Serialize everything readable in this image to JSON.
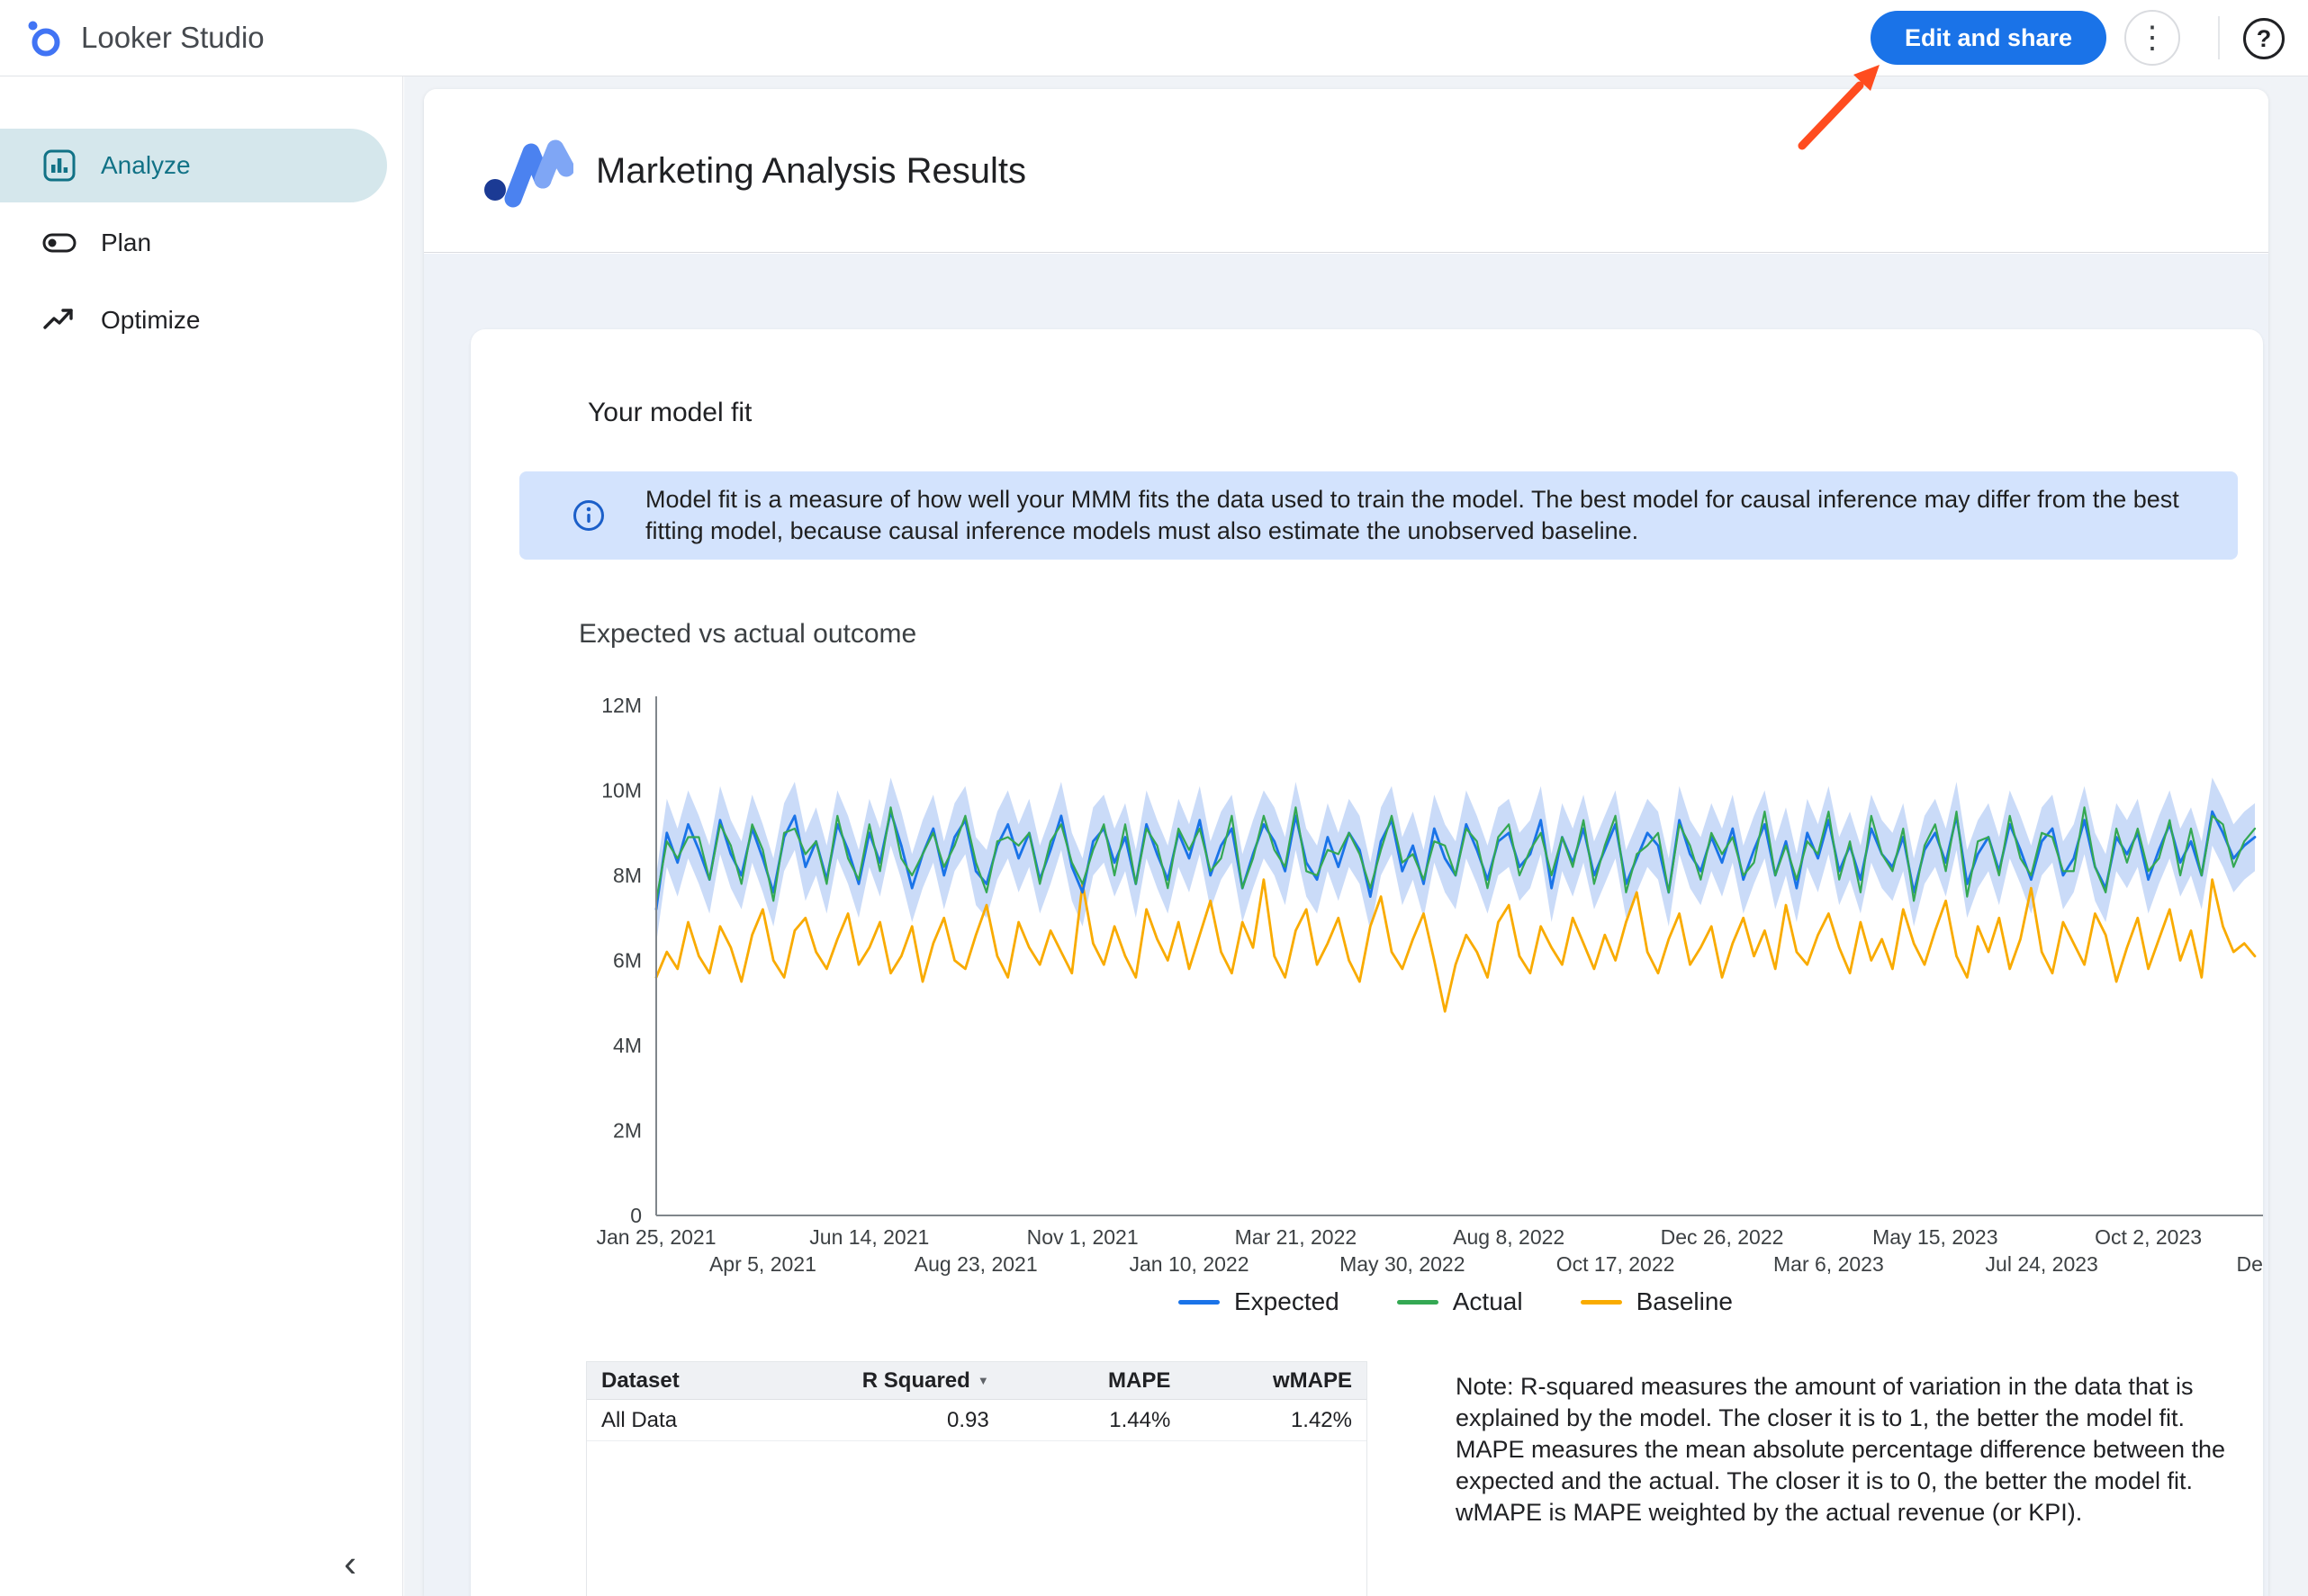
{
  "topbar": {
    "app_name": "Looker Studio",
    "edit_share_label": "Edit and share"
  },
  "icons": {
    "more_options": "⋮",
    "help": "?",
    "collapse": "‹",
    "sort_desc": "▼"
  },
  "colors": {
    "primary_blue": "#1a73e8",
    "annotation_arrow": "#ff4c1f",
    "nav_selected_bg": "#d5e7ec",
    "nav_selected_text": "#117286",
    "banner_bg": "#d3e3fd"
  },
  "sidebar": {
    "items": [
      {
        "label": "Analyze",
        "selected": true
      },
      {
        "label": "Plan",
        "selected": false
      },
      {
        "label": "Optimize",
        "selected": false
      }
    ]
  },
  "report": {
    "title": "Marketing Analysis Results"
  },
  "card": {
    "title": "Your model fit",
    "info_banner": "Model fit is a measure of how well your MMM fits the data used to train the model. The best model for causal inference may differ from the best fitting model, because causal inference models must also estimate the unobserved baseline.",
    "chart_title": "Expected vs actual outcome",
    "note": "Note: R-squared measures the amount of variation in the data that is explained by the model. The closer it is to 1, the better the model fit. MAPE measures the mean absolute percentage difference between the expected and the actual. The closer it is to 0, the better the model fit. wMAPE is MAPE weighted by the actual revenue (or KPI)."
  },
  "table": {
    "headers": [
      "Dataset",
      "R Squared",
      "MAPE",
      "wMAPE"
    ],
    "sort_column": "R Squared",
    "rows": [
      [
        "All Data",
        "0.93",
        "1.44%",
        "1.42%"
      ]
    ]
  },
  "chart_data": {
    "type": "line",
    "title": "Expected vs actual outcome",
    "x_unit": "week",
    "ylim": [
      0,
      12000000
    ],
    "y_tick_labels": [
      "0",
      "2M",
      "4M",
      "6M",
      "8M",
      "10M",
      "12M"
    ],
    "x_tick_interval_weeks": 10,
    "x_ticks": [
      {
        "label": "Jan 25, 2021",
        "row": 1
      },
      {
        "label": "Apr 5, 2021",
        "row": 2
      },
      {
        "label": "Jun 14, 2021",
        "row": 1
      },
      {
        "label": "Aug 23, 2021",
        "row": 2
      },
      {
        "label": "Nov 1, 2021",
        "row": 1
      },
      {
        "label": "Jan 10, 2022",
        "row": 2
      },
      {
        "label": "Mar 21, 2022",
        "row": 1
      },
      {
        "label": "May 30, 2022",
        "row": 2
      },
      {
        "label": "Aug 8, 2022",
        "row": 1
      },
      {
        "label": "Oct 17, 2022",
        "row": 2
      },
      {
        "label": "Dec 26, 2022",
        "row": 1
      },
      {
        "label": "Mar 6, 2023",
        "row": 2
      },
      {
        "label": "May 15, 2023",
        "row": 1
      },
      {
        "label": "Jul 24, 2023",
        "row": 2
      },
      {
        "label": "Oct 2, 2023",
        "row": 1
      },
      {
        "label": "Dec",
        "row": 2
      }
    ],
    "legend": [
      "Expected",
      "Actual",
      "Baseline"
    ],
    "legend_position": "bottom",
    "band_halfwidth_m": 0.8,
    "band_color": "#a6c3f3",
    "series": [
      {
        "name": "Expected",
        "color": "#1a73e8",
        "values_m": [
          7.2,
          9.0,
          8.3,
          9.2,
          8.6,
          7.9,
          9.3,
          8.5,
          8.0,
          9.1,
          8.4,
          7.6,
          8.9,
          9.4,
          8.2,
          8.8,
          7.9,
          9.2,
          8.6,
          7.8,
          9.0,
          8.3,
          9.5,
          8.7,
          7.7,
          8.5,
          9.1,
          8.0,
          8.9,
          9.3,
          8.1,
          7.8,
          8.7,
          9.2,
          8.4,
          9.0,
          7.9,
          8.6,
          9.4,
          8.2,
          7.6,
          8.8,
          9.1,
          8.3,
          8.9,
          7.8,
          9.2,
          8.5,
          7.9,
          9.0,
          8.4,
          9.3,
          8.0,
          8.7,
          9.1,
          7.7,
          8.5,
          9.2,
          8.8,
          8.1,
          9.4,
          8.3,
          7.9,
          8.9,
          8.2,
          9.0,
          8.6,
          7.5,
          8.8,
          9.3,
          8.1,
          8.7,
          7.8,
          9.1,
          8.4,
          8.0,
          9.2,
          8.6,
          7.9,
          8.8,
          9.0,
          8.2,
          8.5,
          9.3,
          7.7,
          8.9,
          8.3,
          9.1,
          8.0,
          8.6,
          9.2,
          7.8,
          8.4,
          9.0,
          8.7,
          7.6,
          9.3,
          8.5,
          8.1,
          8.9,
          8.3,
          9.1,
          7.9,
          8.6,
          9.2,
          8.0,
          8.8,
          7.7,
          9.0,
          8.4,
          9.3,
          8.1,
          8.7,
          7.9,
          9.1,
          8.5,
          8.2,
          8.9,
          7.6,
          8.6,
          9.0,
          8.3,
          9.4,
          7.8,
          8.5,
          8.9,
          8.1,
          9.2,
          8.6,
          7.9,
          8.8,
          9.1,
          8.0,
          8.4,
          9.3,
          8.2,
          7.7,
          8.9,
          8.5,
          9.0,
          7.9,
          8.6,
          9.2,
          8.3,
          8.8,
          8.0,
          9.5,
          9.0,
          8.4,
          8.7,
          8.9
        ]
      },
      {
        "name": "Actual",
        "color": "#34a853",
        "values_m": [
          7.4,
          8.8,
          8.4,
          8.9,
          8.9,
          7.9,
          9.2,
          8.7,
          7.8,
          9.2,
          8.6,
          7.4,
          9.0,
          9.1,
          8.5,
          8.8,
          7.8,
          9.4,
          8.4,
          7.9,
          9.2,
          8.1,
          9.6,
          8.4,
          8.0,
          8.5,
          9.0,
          8.2,
          8.7,
          9.4,
          8.3,
          7.6,
          8.8,
          8.9,
          8.7,
          9.0,
          7.8,
          8.8,
          9.2,
          8.3,
          7.8,
          8.6,
          9.2,
          8.0,
          9.2,
          7.8,
          9.1,
          8.7,
          7.7,
          9.1,
          8.6,
          9.1,
          8.1,
          8.4,
          9.4,
          7.7,
          8.4,
          9.4,
          8.6,
          8.2,
          9.6,
          8.1,
          8.0,
          8.6,
          8.5,
          9.0,
          8.5,
          7.7,
          8.6,
          9.4,
          8.3,
          8.5,
          7.9,
          8.8,
          8.7,
          8.0,
          9.1,
          8.8,
          7.7,
          8.9,
          9.2,
          8.0,
          8.6,
          9.0,
          8.0,
          8.9,
          8.2,
          9.3,
          7.8,
          8.7,
          9.4,
          7.6,
          8.5,
          8.7,
          9.0,
          7.6,
          9.2,
          8.7,
          7.9,
          9.0,
          8.5,
          8.9,
          8.0,
          8.3,
          9.5,
          8.0,
          8.7,
          7.9,
          8.8,
          8.5,
          9.5,
          7.9,
          8.8,
          7.6,
          9.4,
          8.5,
          8.1,
          9.1,
          7.4,
          8.7,
          9.2,
          8.1,
          9.5,
          7.5,
          8.8,
          8.9,
          8.0,
          9.4,
          8.4,
          8.0,
          9.0,
          8.9,
          8.1,
          8.1,
          9.6,
          8.2,
          7.6,
          9.1,
          8.3,
          9.1,
          8.1,
          8.4,
          9.3,
          8.0,
          9.1,
          8.0,
          9.4,
          9.2,
          8.2,
          8.8,
          9.1
        ]
      },
      {
        "name": "Baseline",
        "color": "#f9ab00",
        "values_m": [
          5.6,
          6.2,
          5.8,
          6.9,
          6.1,
          5.7,
          6.8,
          6.3,
          5.5,
          6.6,
          7.2,
          6.0,
          5.6,
          6.7,
          7.0,
          6.2,
          5.8,
          6.5,
          7.1,
          5.9,
          6.3,
          6.9,
          5.7,
          6.1,
          6.8,
          5.5,
          6.4,
          7.0,
          6.0,
          5.8,
          6.6,
          7.3,
          6.1,
          5.6,
          6.9,
          6.3,
          5.9,
          6.7,
          6.2,
          5.7,
          7.8,
          6.4,
          5.9,
          6.8,
          6.1,
          5.6,
          7.2,
          6.5,
          6.0,
          6.9,
          5.8,
          6.6,
          7.4,
          6.2,
          5.7,
          6.9,
          6.3,
          7.9,
          6.1,
          5.6,
          6.7,
          7.2,
          5.9,
          6.4,
          7.0,
          6.0,
          5.5,
          6.8,
          7.5,
          6.2,
          5.8,
          6.5,
          7.1,
          6.0,
          4.8,
          5.9,
          6.6,
          6.2,
          5.6,
          6.9,
          7.3,
          6.1,
          5.7,
          6.8,
          6.3,
          5.9,
          7.0,
          6.4,
          5.8,
          6.6,
          6.0,
          6.9,
          7.6,
          6.2,
          5.7,
          6.5,
          7.1,
          5.9,
          6.3,
          6.8,
          5.6,
          6.4,
          7.0,
          6.1,
          6.7,
          5.8,
          7.3,
          6.2,
          5.9,
          6.6,
          7.1,
          6.3,
          5.7,
          6.9,
          6.0,
          6.5,
          5.8,
          7.2,
          6.4,
          5.9,
          6.7,
          7.4,
          6.1,
          5.6,
          6.8,
          6.2,
          7.0,
          5.8,
          6.5,
          7.7,
          6.2,
          5.7,
          6.9,
          6.4,
          5.9,
          7.1,
          6.6,
          5.5,
          6.3,
          7.0,
          5.8,
          6.5,
          7.2,
          6.0,
          6.7,
          5.6,
          7.9,
          6.8,
          6.2,
          6.4,
          6.1
        ]
      }
    ]
  }
}
